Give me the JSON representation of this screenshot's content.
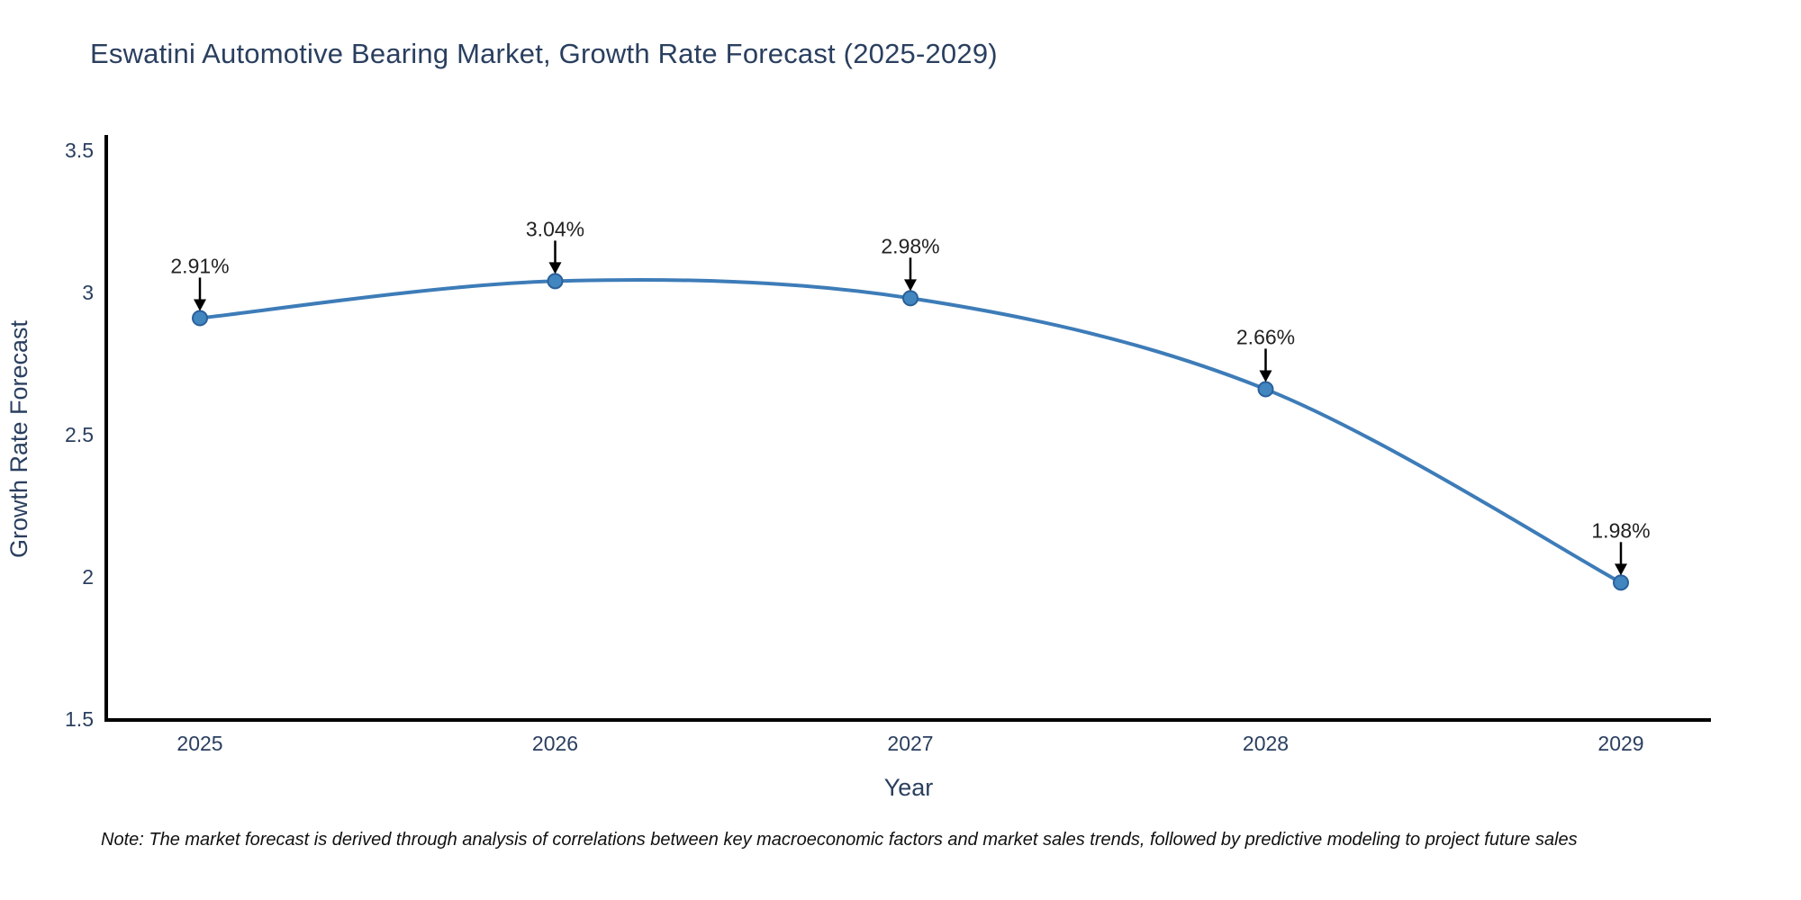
{
  "title": "Eswatini Automotive Bearing Market, Growth Rate Forecast (2025-2029)",
  "note": "Note: The market forecast is derived through analysis of correlations between key macroeconomic factors and market sales trends, followed by predictive modeling to project future sales",
  "chart_data": {
    "type": "line",
    "title": "Eswatini Automotive Bearing Market, Growth Rate Forecast (2025-2029)",
    "xlabel": "Year",
    "ylabel": "Growth Rate Forecast",
    "categories": [
      2025,
      2026,
      2027,
      2028,
      2029
    ],
    "values": [
      2.91,
      3.04,
      2.98,
      2.66,
      1.98
    ],
    "point_labels": [
      "2.91%",
      "3.04%",
      "2.98%",
      "2.66%",
      "1.98%"
    ],
    "xtick_labels": [
      "2025",
      "2026",
      "2027",
      "2028",
      "2029"
    ],
    "ytick_values": [
      1.5,
      2,
      2.5,
      3,
      3.5
    ],
    "ytick_labels": [
      "1.5",
      "2",
      "2.5",
      "3",
      "3.5"
    ],
    "ylim": [
      1.5,
      3.55
    ],
    "xlim": [
      2024.74,
      2029.25
    ],
    "grid": false,
    "legend": "none",
    "annotation_style": "down-arrow",
    "colors": {
      "line": "#3d7cb8",
      "marker_fill": "#4286c0",
      "marker_edge": "#2a6099",
      "axis": "#000000",
      "title_text": "#2a3f5f",
      "tick_text": "#2a3f5f",
      "axis_title_text": "#2a3f5f",
      "annotation_text": "#222222",
      "arrow": "#000000",
      "note_text": "#111111",
      "background": "#ffffff"
    }
  }
}
